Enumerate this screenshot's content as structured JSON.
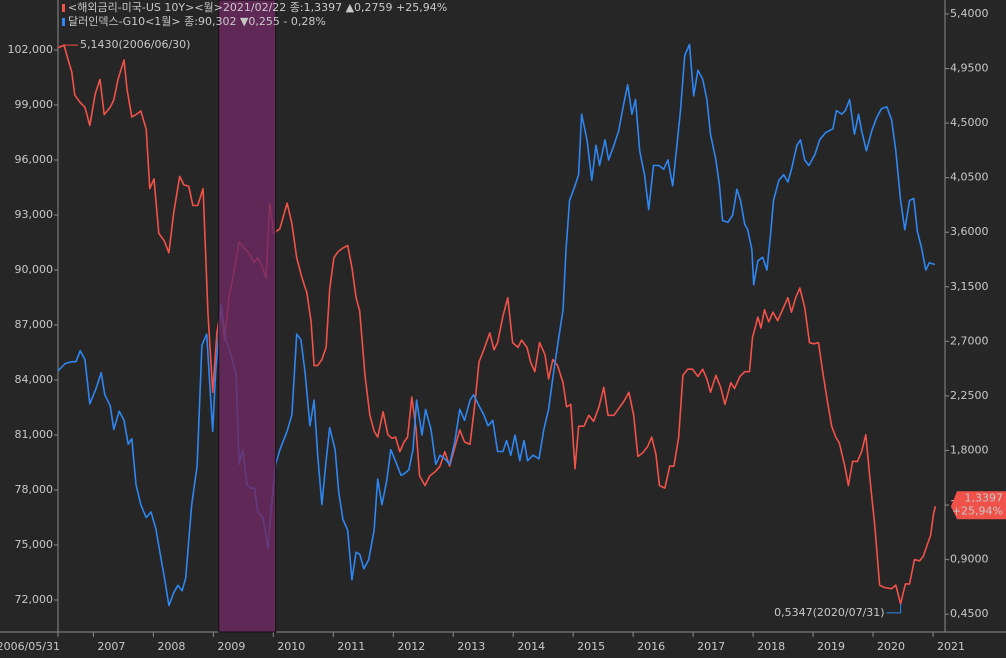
{
  "chart_data": {
    "type": "line",
    "xlim": [
      2006.41,
      2021.2
    ],
    "xticks": [
      {
        "value": 2006.41,
        "label": "2006/05/31"
      },
      2007,
      2008,
      2009,
      2010,
      2011,
      2012,
      2013,
      2014,
      2015,
      2016,
      2017,
      2018,
      2019,
      2020,
      2021
    ],
    "ylim": [
      70255,
      104727
    ],
    "yticks": [
      {
        "value": 72000,
        "label": "72,000"
      },
      {
        "value": 75000,
        "label": "75,000"
      },
      {
        "value": 78000,
        "label": "78,000"
      },
      {
        "value": 81000,
        "label": "81,000"
      },
      {
        "value": 84000,
        "label": "84,000"
      },
      {
        "value": 87000,
        "label": "87,000"
      },
      {
        "value": 90000,
        "label": "90,000"
      },
      {
        "value": 93000,
        "label": "93,000"
      },
      {
        "value": 96000,
        "label": "96,000"
      },
      {
        "value": 99000,
        "label": "99,000"
      },
      {
        "value": 102000,
        "label": "102,000"
      }
    ],
    "y2lim": [
      0.303,
      5.515
    ],
    "y2ticks": [
      {
        "value": 0.45,
        "label": "0,4500"
      },
      {
        "value": 0.9,
        "label": "0,9000"
      },
      {
        "value": 1.35,
        "label": "1,3500"
      },
      {
        "value": 1.8,
        "label": "1,8000"
      },
      {
        "value": 2.25,
        "label": "2,2500"
      },
      {
        "value": 2.7,
        "label": "2,7000"
      },
      {
        "value": 3.15,
        "label": "3,1500"
      },
      {
        "value": 3.6,
        "label": "3,6000"
      },
      {
        "value": 4.05,
        "label": "4,0500"
      },
      {
        "value": 4.5,
        "label": "4,5000"
      },
      {
        "value": 4.95,
        "label": "4,9500"
      },
      {
        "value": 5.4,
        "label": "5,4000"
      }
    ],
    "grid": false,
    "highlight": {
      "x": [
        2009.09,
        2010.04
      ],
      "color": "#6e2a62"
    },
    "series": [
      {
        "name": "<해외금리-미국-US 10Y><월>2021/02/22 종:1,3397  ▲0,2759  +25,94%",
        "color": "#f0524a",
        "axis": "y2",
        "end_tag": [
          "1,3397",
          "+25,94%"
        ],
        "x": [
          2006.41,
          2006.51,
          2006.58,
          2006.64,
          2006.69,
          2006.78,
          2006.86,
          2006.94,
          2007.03,
          2007.11,
          2007.18,
          2007.28,
          2007.34,
          2007.41,
          2007.51,
          2007.56,
          2007.64,
          2007.71,
          2007.79,
          2007.88,
          2007.94,
          2008.01,
          2008.09,
          2008.18,
          2008.26,
          2008.34,
          2008.44,
          2008.51,
          2008.59,
          2008.66,
          2008.74,
          2008.83,
          2008.91,
          2008.99,
          2009.06,
          2009.13,
          2009.19,
          2009.26,
          2009.34,
          2009.43,
          2009.51,
          2009.59,
          2009.68,
          2009.74,
          2009.81,
          2009.88,
          2009.94,
          2010.01,
          2010.11,
          2010.23,
          2010.31,
          2010.39,
          2010.48,
          2010.56,
          2010.63,
          2010.68,
          2010.74,
          2010.81,
          2010.88,
          2010.94,
          2011.01,
          2011.08,
          2011.16,
          2011.24,
          2011.31,
          2011.38,
          2011.44,
          2011.53,
          2011.61,
          2011.68,
          2011.74,
          2011.83,
          2011.91,
          2011.98,
          2012.04,
          2012.11,
          2012.18,
          2012.24,
          2012.31,
          2012.38,
          2012.44,
          2012.53,
          2012.61,
          2012.71,
          2012.78,
          2012.86,
          2012.94,
          2013.03,
          2013.11,
          2013.19,
          2013.28,
          2013.36,
          2013.43,
          2013.51,
          2013.61,
          2013.68,
          2013.74,
          2013.83,
          2013.91,
          2013.99,
          2014.08,
          2014.14,
          2014.23,
          2014.29,
          2014.36,
          2014.44,
          2014.53,
          2014.59,
          2014.66,
          2014.74,
          2014.83,
          2014.89,
          2014.96,
          2015.03,
          2015.09,
          2015.18,
          2015.26,
          2015.34,
          2015.43,
          2015.51,
          2015.58,
          2015.68,
          2015.78,
          2015.84,
          2015.93,
          2016.01,
          2016.08,
          2016.16,
          2016.24,
          2016.31,
          2016.38,
          2016.44,
          2016.53,
          2016.61,
          2016.68,
          2016.76,
          2016.83,
          2016.91,
          2016.99,
          2017.08,
          2017.16,
          2017.23,
          2017.29,
          2017.38,
          2017.46,
          2017.53,
          2017.63,
          2017.69,
          2017.78,
          2017.86,
          2017.94,
          2017.99,
          2018.08,
          2018.13,
          2018.19,
          2018.26,
          2018.33,
          2018.41,
          2018.49,
          2018.58,
          2018.64,
          2018.71,
          2018.78,
          2018.86,
          2018.94,
          2019.01,
          2019.09,
          2019.16,
          2019.24,
          2019.31,
          2019.38,
          2019.44,
          2019.53,
          2019.59,
          2019.66,
          2019.74,
          2019.81,
          2019.88,
          2019.96,
          2020.03,
          2020.11,
          2020.19,
          2020.31,
          2020.38,
          2020.46,
          2020.54,
          2020.61,
          2020.69,
          2020.78,
          2020.84,
          2020.91,
          2020.96,
          2021.01,
          2021.04
        ],
        "values": [
          5.12,
          5.143,
          5.02,
          4.92,
          4.73,
          4.67,
          4.63,
          4.48,
          4.74,
          4.86,
          4.57,
          4.63,
          4.69,
          4.86,
          5.02,
          4.78,
          4.55,
          4.57,
          4.6,
          4.45,
          3.96,
          4.04,
          3.59,
          3.53,
          3.43,
          3.76,
          4.06,
          3.99,
          3.98,
          3.82,
          3.82,
          3.96,
          2.94,
          2.28,
          2.77,
          2.98,
          2.71,
          3.06,
          3.26,
          3.52,
          3.47,
          3.43,
          3.35,
          3.39,
          3.32,
          3.22,
          3.84,
          3.59,
          3.63,
          3.84,
          3.67,
          3.39,
          3.22,
          3.1,
          2.86,
          2.5,
          2.5,
          2.55,
          2.65,
          3.13,
          3.39,
          3.44,
          3.47,
          3.49,
          3.31,
          3.06,
          2.95,
          2.41,
          2.09,
          1.96,
          1.91,
          2.12,
          1.93,
          1.9,
          1.91,
          1.79,
          1.87,
          1.91,
          2.24,
          1.98,
          1.59,
          1.51,
          1.59,
          1.63,
          1.67,
          1.79,
          1.67,
          1.83,
          1.97,
          1.87,
          1.85,
          2.18,
          2.53,
          2.63,
          2.77,
          2.63,
          2.69,
          2.91,
          3.06,
          2.69,
          2.65,
          2.71,
          2.65,
          2.53,
          2.45,
          2.69,
          2.59,
          2.39,
          2.55,
          2.5,
          2.36,
          2.16,
          2.18,
          1.65,
          2.0,
          2.0,
          2.09,
          2.04,
          2.16,
          2.32,
          2.09,
          2.09,
          2.16,
          2.2,
          2.28,
          2.09,
          1.75,
          1.78,
          1.83,
          1.91,
          1.77,
          1.51,
          1.49,
          1.67,
          1.67,
          1.91,
          2.42,
          2.47,
          2.47,
          2.41,
          2.47,
          2.39,
          2.28,
          2.42,
          2.32,
          2.18,
          2.36,
          2.31,
          2.41,
          2.45,
          2.45,
          2.73,
          2.9,
          2.81,
          2.96,
          2.86,
          2.94,
          2.87,
          2.96,
          3.06,
          2.94,
          3.06,
          3.14,
          2.98,
          2.69,
          2.68,
          2.69,
          2.45,
          2.2,
          2.0,
          1.91,
          1.86,
          1.67,
          1.51,
          1.71,
          1.71,
          1.79,
          1.93,
          1.51,
          1.18,
          0.69,
          0.67,
          0.66,
          0.69,
          0.5347,
          0.7,
          0.7,
          0.9,
          0.89,
          0.93,
          1.03,
          1.1,
          1.28,
          1.3397
        ]
      },
      {
        "name": "달러인덱스-G10<1월> 종:90,302 ▼0,255  - 0,28%",
        "color": "#2f86f0",
        "axis": "y",
        "x": [
          2006.41,
          2006.53,
          2006.64,
          2006.71,
          2006.78,
          2006.86,
          2006.94,
          2007.04,
          2007.13,
          2007.19,
          2007.28,
          2007.34,
          2007.43,
          2007.51,
          2007.58,
          2007.64,
          2007.71,
          2007.79,
          2007.88,
          2007.96,
          2008.04,
          2008.13,
          2008.19,
          2008.26,
          2008.34,
          2008.41,
          2008.48,
          2008.54,
          2008.64,
          2008.73,
          2008.81,
          2008.89,
          2008.99,
          2009.04,
          2009.13,
          2009.21,
          2009.29,
          2009.38,
          2009.43,
          2009.49,
          2009.56,
          2009.63,
          2009.69,
          2009.74,
          2009.83,
          2009.91,
          2009.98,
          2010.04,
          2010.11,
          2010.23,
          2010.31,
          2010.39,
          2010.46,
          2010.53,
          2010.61,
          2010.68,
          2010.74,
          2010.81,
          2010.88,
          2010.94,
          2011.03,
          2011.09,
          2011.16,
          2011.24,
          2011.31,
          2011.38,
          2011.44,
          2011.51,
          2011.59,
          2011.68,
          2011.74,
          2011.81,
          2011.89,
          2011.96,
          2012.06,
          2012.13,
          2012.19,
          2012.26,
          2012.33,
          2012.39,
          2012.48,
          2012.54,
          2012.63,
          2012.71,
          2012.78,
          2012.86,
          2012.94,
          2013.03,
          2013.11,
          2013.19,
          2013.28,
          2013.34,
          2013.43,
          2013.51,
          2013.58,
          2013.66,
          2013.74,
          2013.83,
          2013.89,
          2013.96,
          2014.03,
          2014.11,
          2014.18,
          2014.24,
          2014.33,
          2014.43,
          2014.51,
          2014.59,
          2014.66,
          2014.74,
          2014.83,
          2014.88,
          2014.94,
          2015.03,
          2015.09,
          2015.14,
          2015.23,
          2015.31,
          2015.38,
          2015.44,
          2015.53,
          2015.59,
          2015.68,
          2015.76,
          2015.84,
          2015.91,
          2015.98,
          2016.04,
          2016.11,
          2016.19,
          2016.26,
          2016.34,
          2016.43,
          2016.51,
          2016.58,
          2016.66,
          2016.73,
          2016.79,
          2016.86,
          2016.94,
          2017.01,
          2017.08,
          2017.16,
          2017.23,
          2017.29,
          2017.38,
          2017.44,
          2017.49,
          2017.58,
          2017.66,
          2017.73,
          2017.79,
          2017.86,
          2017.91,
          2017.98,
          2018.01,
          2018.08,
          2018.16,
          2018.23,
          2018.29,
          2018.34,
          2018.43,
          2018.51,
          2018.58,
          2018.64,
          2018.73,
          2018.79,
          2018.86,
          2018.93,
          2019.03,
          2019.11,
          2019.21,
          2019.33,
          2019.39,
          2019.48,
          2019.54,
          2019.61,
          2019.69,
          2019.76,
          2019.81,
          2019.89,
          2019.98,
          2020.06,
          2020.14,
          2020.23,
          2020.31,
          2020.38,
          2020.46,
          2020.53,
          2020.61,
          2020.68,
          2020.74,
          2020.81,
          2020.88,
          2020.94,
          2021.03
        ],
        "values": [
          84500,
          84900,
          85000,
          85000,
          85600,
          85100,
          82700,
          83500,
          84400,
          83200,
          82600,
          81300,
          82300,
          81800,
          80500,
          80800,
          78300,
          77200,
          76500,
          76800,
          75900,
          74200,
          73100,
          71700,
          72400,
          72800,
          72500,
          73200,
          77200,
          79300,
          85900,
          86500,
          81200,
          84500,
          88100,
          86200,
          85400,
          84300,
          79400,
          80200,
          78300,
          78100,
          78100,
          76800,
          76500,
          74800,
          77500,
          79400,
          80200,
          81200,
          82100,
          86500,
          86200,
          84400,
          81500,
          82900,
          79900,
          77200,
          79600,
          81400,
          80200,
          77900,
          76400,
          75800,
          73100,
          74600,
          74500,
          73700,
          74200,
          75800,
          78600,
          77200,
          78500,
          80200,
          79400,
          78800,
          78900,
          79100,
          80200,
          82900,
          81000,
          82400,
          81300,
          79400,
          79900,
          79700,
          79400,
          80700,
          82400,
          81800,
          82900,
          83200,
          82600,
          82100,
          81500,
          81800,
          80100,
          80100,
          80700,
          79900,
          81000,
          79600,
          80700,
          79600,
          79900,
          79700,
          81300,
          82400,
          84100,
          85900,
          87800,
          91100,
          93800,
          94600,
          95200,
          98500,
          97100,
          94900,
          96800,
          95700,
          97100,
          96000,
          96800,
          97600,
          99000,
          100100,
          98500,
          99300,
          96500,
          95200,
          93300,
          95700,
          95700,
          95500,
          96000,
          94600,
          96800,
          98700,
          101700,
          102300,
          99500,
          100900,
          100400,
          99300,
          97400,
          96000,
          94600,
          92700,
          92600,
          93000,
          94400,
          93800,
          92500,
          92200,
          91100,
          89200,
          90500,
          90700,
          90000,
          91900,
          93800,
          94900,
          95200,
          94800,
          95500,
          96800,
          97100,
          96000,
          95700,
          96300,
          97100,
          97500,
          97700,
          98700,
          98500,
          98700,
          99300,
          97400,
          98500,
          97600,
          96500,
          97600,
          98300,
          98800,
          98900,
          98200,
          96500,
          93800,
          92200,
          93800,
          93900,
          92100,
          91200,
          90000,
          90400,
          90302
        ]
      }
    ],
    "annotations": [
      {
        "text": "5,1430(2006/06/30)",
        "x": 2006.51,
        "y": 5.143,
        "axis": "y2",
        "color": "#f0524a",
        "side": "right"
      },
      {
        "text": "0,5347(2020/07/31)",
        "x": 2020.46,
        "y": 0.5347,
        "axis": "y2",
        "color": "#2f86f0",
        "side": "left"
      }
    ]
  }
}
